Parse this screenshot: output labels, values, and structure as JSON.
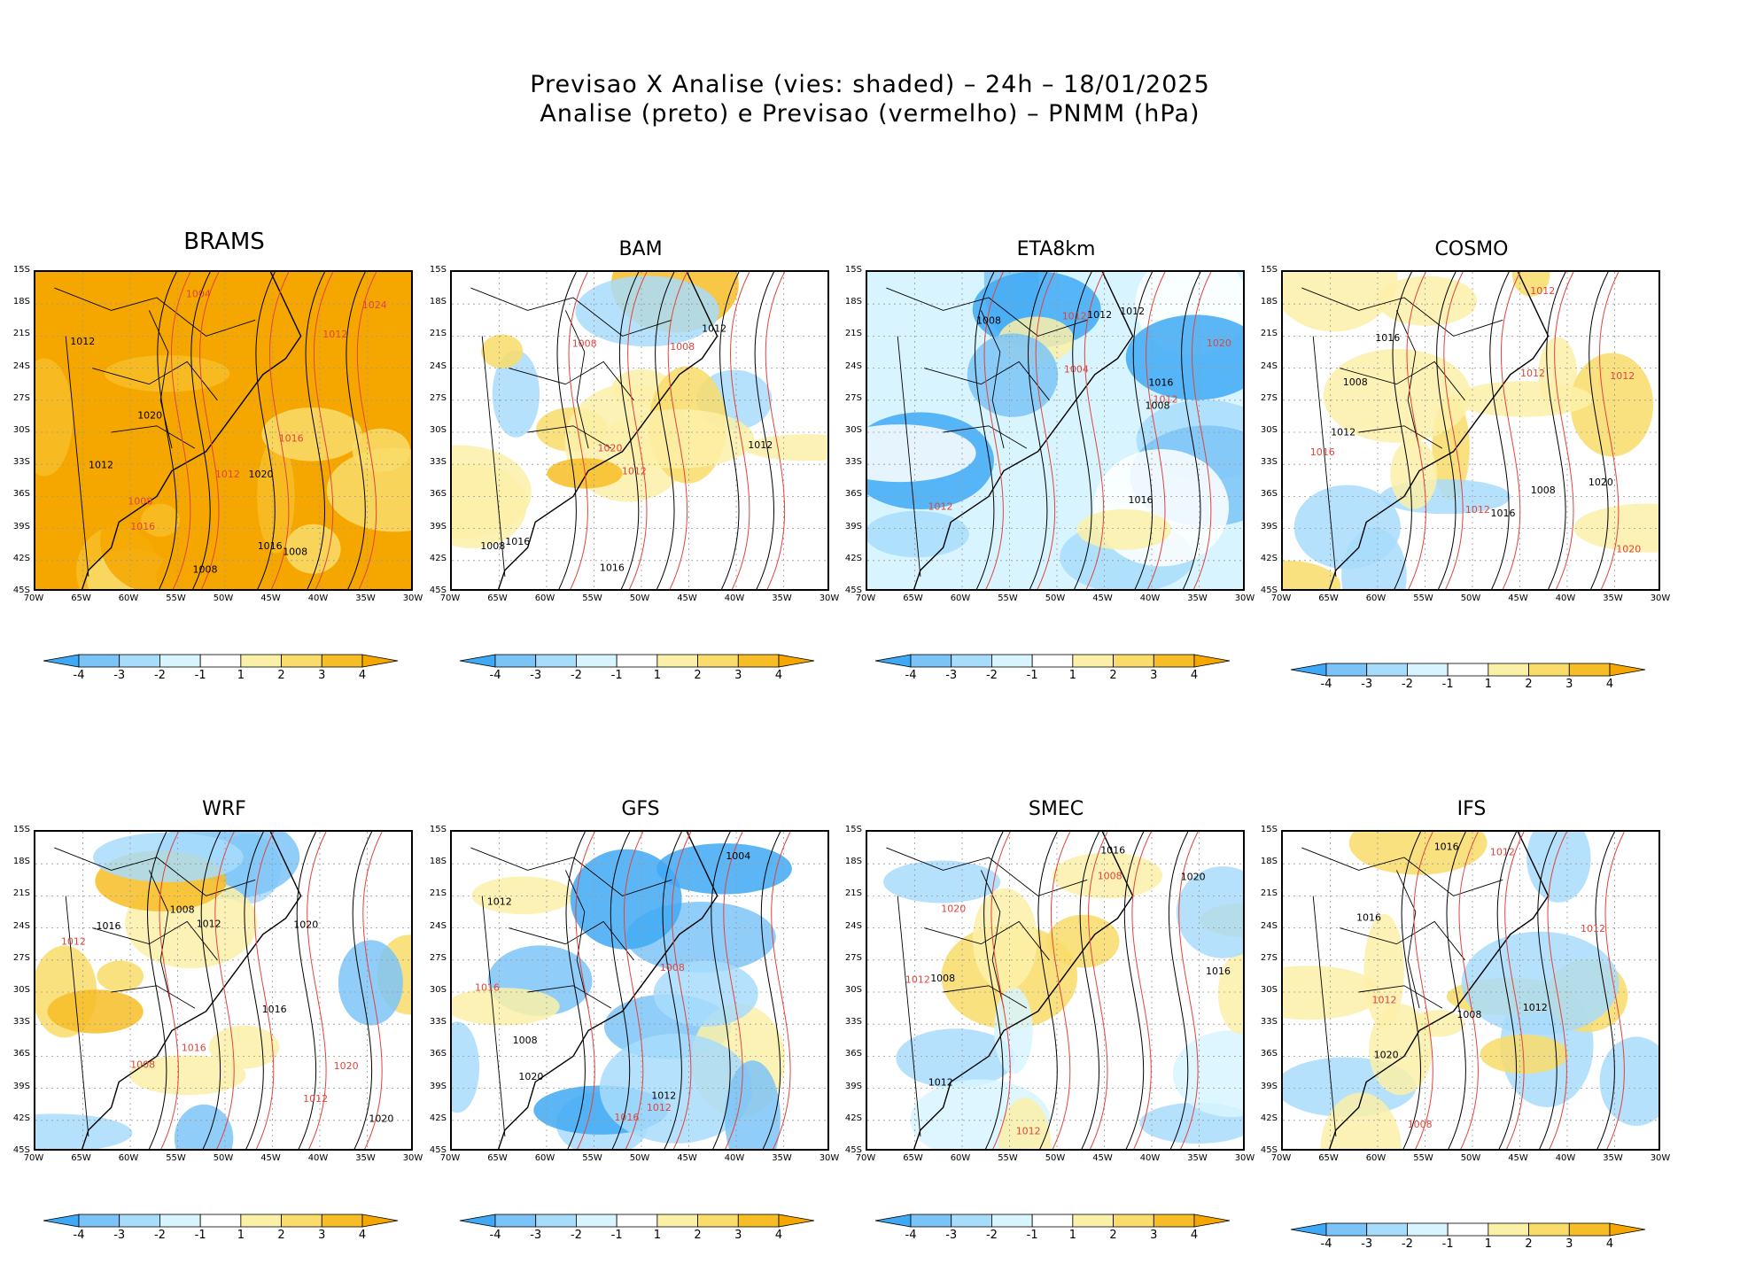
{
  "header": {
    "line1": "Previsao X Analise (vies: shaded) – 24h – 18/01/2025",
    "line2": "Analise (preto) e Previsao (vermelho) – PNMM (hPa)"
  },
  "axes": {
    "lat_labels": [
      "15S",
      "18S",
      "21S",
      "24S",
      "27S",
      "30S",
      "33S",
      "36S",
      "39S",
      "42S",
      "45S"
    ],
    "lon_labels": [
      "70W",
      "65W",
      "60W",
      "55W",
      "50W",
      "45W",
      "40W",
      "35W",
      "30W"
    ]
  },
  "colorbar": {
    "labels": [
      "-4",
      "-3",
      "-2",
      "-1",
      "1",
      "2",
      "3",
      "4"
    ],
    "colors": [
      "#3fa9f5",
      "#7cc4f7",
      "#a8dcfb",
      "#d7f4ff",
      "#ffffff",
      "#fbf0a8",
      "#f9dc6a",
      "#f7bd26",
      "#f5a700"
    ]
  },
  "contours": {
    "analysis_color": "#000000",
    "forecast_color": "#e0443c"
  },
  "panels": [
    {
      "name": "BRAMS",
      "bias": "warm-strong",
      "labels": [
        "1012",
        "1004",
        "1008",
        "1012",
        "1016",
        "1016",
        "1020",
        "1024",
        "1020",
        "1016",
        "1008",
        "1012",
        "1012",
        "1008"
      ]
    },
    {
      "name": "BAM",
      "bias": "warm-mild",
      "labels": [
        "1016",
        "1008",
        "1012",
        "1008",
        "1012",
        "1020",
        "1016",
        "1012",
        "1008"
      ]
    },
    {
      "name": "ETA8km",
      "bias": "cold",
      "labels": [
        "1016",
        "1012",
        "1008",
        "1012",
        "1008",
        "1004",
        "1012",
        "1020",
        "1016",
        "1012",
        "1012"
      ]
    },
    {
      "name": "COSMO",
      "bias": "mixed",
      "labels": [
        "1012",
        "1016",
        "1008",
        "1012",
        "1020",
        "1012",
        "1008",
        "1012",
        "1016",
        "1020",
        "1016",
        "1012"
      ]
    },
    {
      "name": "WRF",
      "bias": "mixed-blue",
      "labels": [
        "1012",
        "1008",
        "1016",
        "1012",
        "1020",
        "1020",
        "1016",
        "1012",
        "1008",
        "1016",
        "1020"
      ]
    },
    {
      "name": "GFS",
      "bias": "cold-west",
      "labels": [
        "1004",
        "1016",
        "1012",
        "1008",
        "1012",
        "1016",
        "1020",
        "1012",
        "1008"
      ]
    },
    {
      "name": "SMEC",
      "bias": "mild",
      "labels": [
        "1012",
        "1008",
        "1016",
        "1012",
        "1008",
        "1020",
        "1016",
        "1012",
        "1020"
      ]
    },
    {
      "name": "IFS",
      "bias": "neutral",
      "labels": [
        "1008",
        "1012",
        "1016",
        "1012",
        "1020",
        "1008",
        "1016",
        "1012",
        "1012"
      ]
    }
  ]
}
